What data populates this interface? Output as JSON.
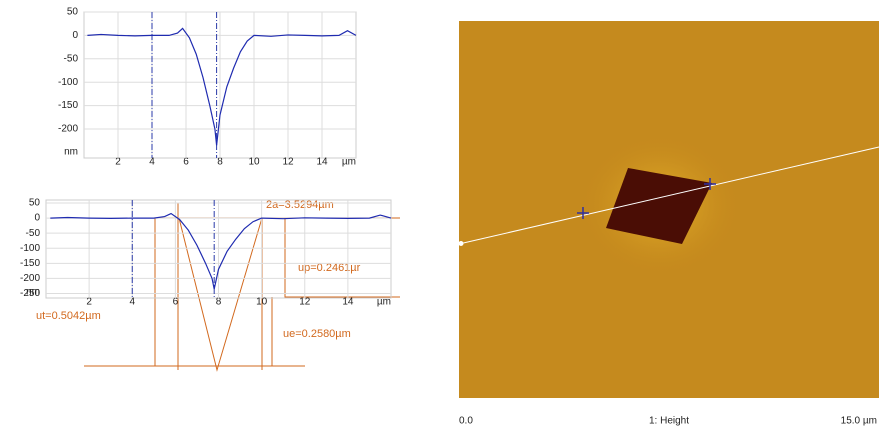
{
  "chart_data": [
    {
      "type": "line",
      "xlabel": "µm",
      "ylabel": "nm",
      "x": [
        0.2,
        1,
        2,
        3,
        4,
        5,
        5.5,
        5.8,
        6.2,
        6.6,
        7,
        7.4,
        7.7,
        7.8,
        8,
        8.4,
        8.8,
        9.2,
        9.6,
        10,
        11,
        12,
        13,
        14,
        15,
        15.5,
        16
      ],
      "series": [
        {
          "color": "#1f2bb0",
          "values": [
            0,
            2,
            0,
            -1,
            0,
            0,
            5,
            15,
            -5,
            -40,
            -90,
            -150,
            -200,
            -235,
            -170,
            -110,
            -70,
            -35,
            -12,
            0,
            -2,
            1,
            0,
            -1,
            0,
            10,
            0
          ]
        }
      ],
      "cursors": [
        4,
        7.8
      ],
      "xlim": [
        0,
        16
      ],
      "ylim": [
        -262,
        50
      ],
      "xticks": [
        2,
        4,
        6,
        8,
        10,
        12,
        14
      ],
      "yticks": [
        50,
        0,
        -50,
        -100,
        -150,
        -200
      ],
      "grid": true
    },
    {
      "type": "line",
      "xlabel": "µm",
      "ylabel": "nm",
      "x": [
        0.2,
        1,
        2,
        3,
        4,
        5,
        5.5,
        5.8,
        6.2,
        6.6,
        7,
        7.4,
        7.7,
        7.8,
        8,
        8.4,
        8.8,
        9.2,
        9.6,
        10,
        11,
        12,
        13,
        14,
        15,
        15.5,
        16
      ],
      "series": [
        {
          "color": "#1f2bb0",
          "values": [
            0,
            2,
            0,
            -1,
            0,
            0,
            5,
            15,
            -5,
            -40,
            -90,
            -150,
            -200,
            -235,
            -170,
            -110,
            -70,
            -35,
            -12,
            0,
            -2,
            1,
            0,
            -1,
            0,
            10,
            0
          ]
        }
      ],
      "cursors": [
        4,
        7.8
      ],
      "xlim": [
        0,
        16
      ],
      "ylim": [
        -265,
        60
      ],
      "xticks": [
        2,
        4,
        6,
        8,
        10,
        12,
        14
      ],
      "yticks": [
        50,
        0,
        -50,
        -100,
        -150,
        -200,
        -250
      ],
      "grid": true,
      "annotations": [
        "2a=3.5294µm",
        "up=0.2461µr",
        "ut=0.5042µm",
        "ue=0.2580µm"
      ]
    }
  ],
  "image": {
    "left_label": "0.0",
    "center_label": "1: Height",
    "right_label": "15.0 µm"
  }
}
